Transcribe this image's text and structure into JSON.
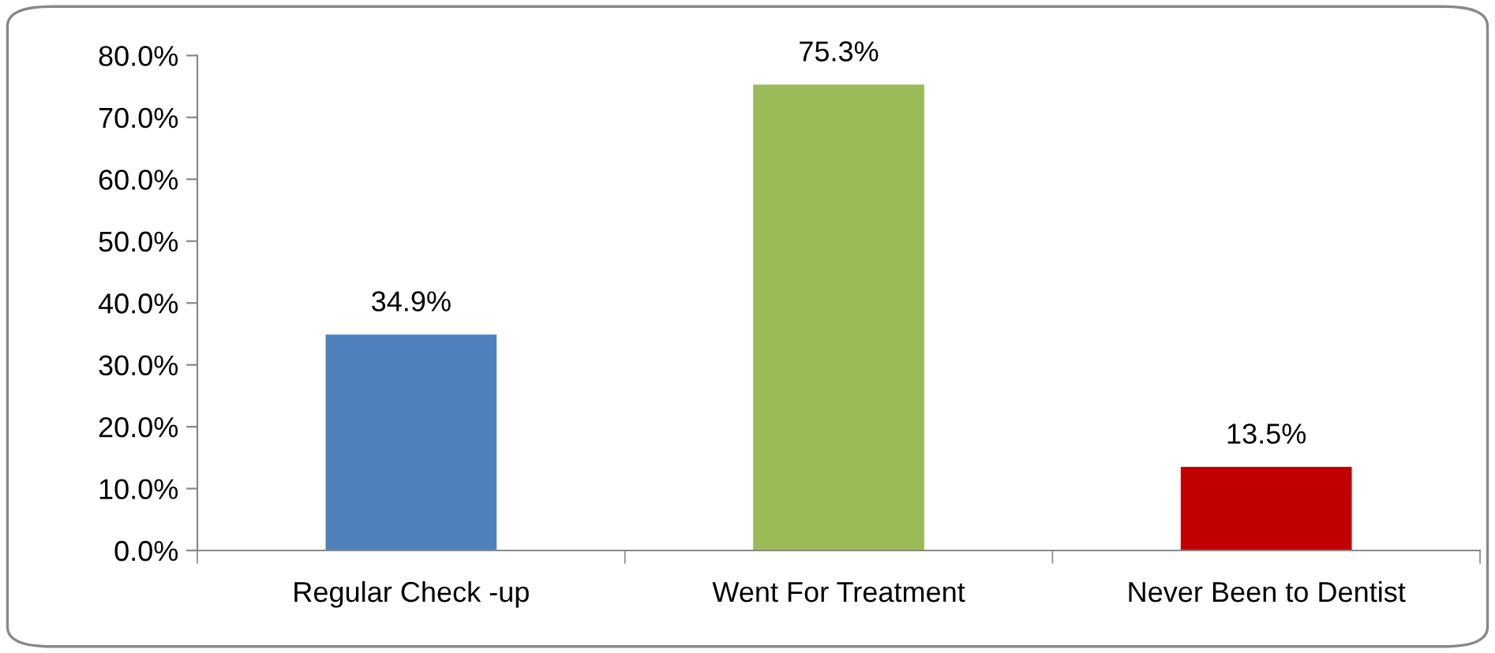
{
  "chart_data": {
    "type": "bar",
    "categories": [
      "Regular Check -up",
      "Went For Treatment",
      "Never Been to Dentist"
    ],
    "values": [
      34.9,
      75.3,
      13.5
    ],
    "colors": [
      "#4f81bd",
      "#9bbb59",
      "#c00000"
    ],
    "value_labels": [
      "34.9%",
      "75.3%",
      "13.5%"
    ],
    "ylim": [
      0,
      80
    ],
    "yticks": [
      {
        "value": 0,
        "label": "0.0%"
      },
      {
        "value": 10,
        "label": "10.0%"
      },
      {
        "value": 20,
        "label": "20.0%"
      },
      {
        "value": 30,
        "label": "30.0%"
      },
      {
        "value": 40,
        "label": "40.0%"
      },
      {
        "value": 50,
        "label": "50.0%"
      },
      {
        "value": 60,
        "label": "60.0%"
      },
      {
        "value": 70,
        "label": "70.0%"
      },
      {
        "value": 80,
        "label": "80.0%"
      }
    ],
    "grid": false,
    "legend": false
  }
}
